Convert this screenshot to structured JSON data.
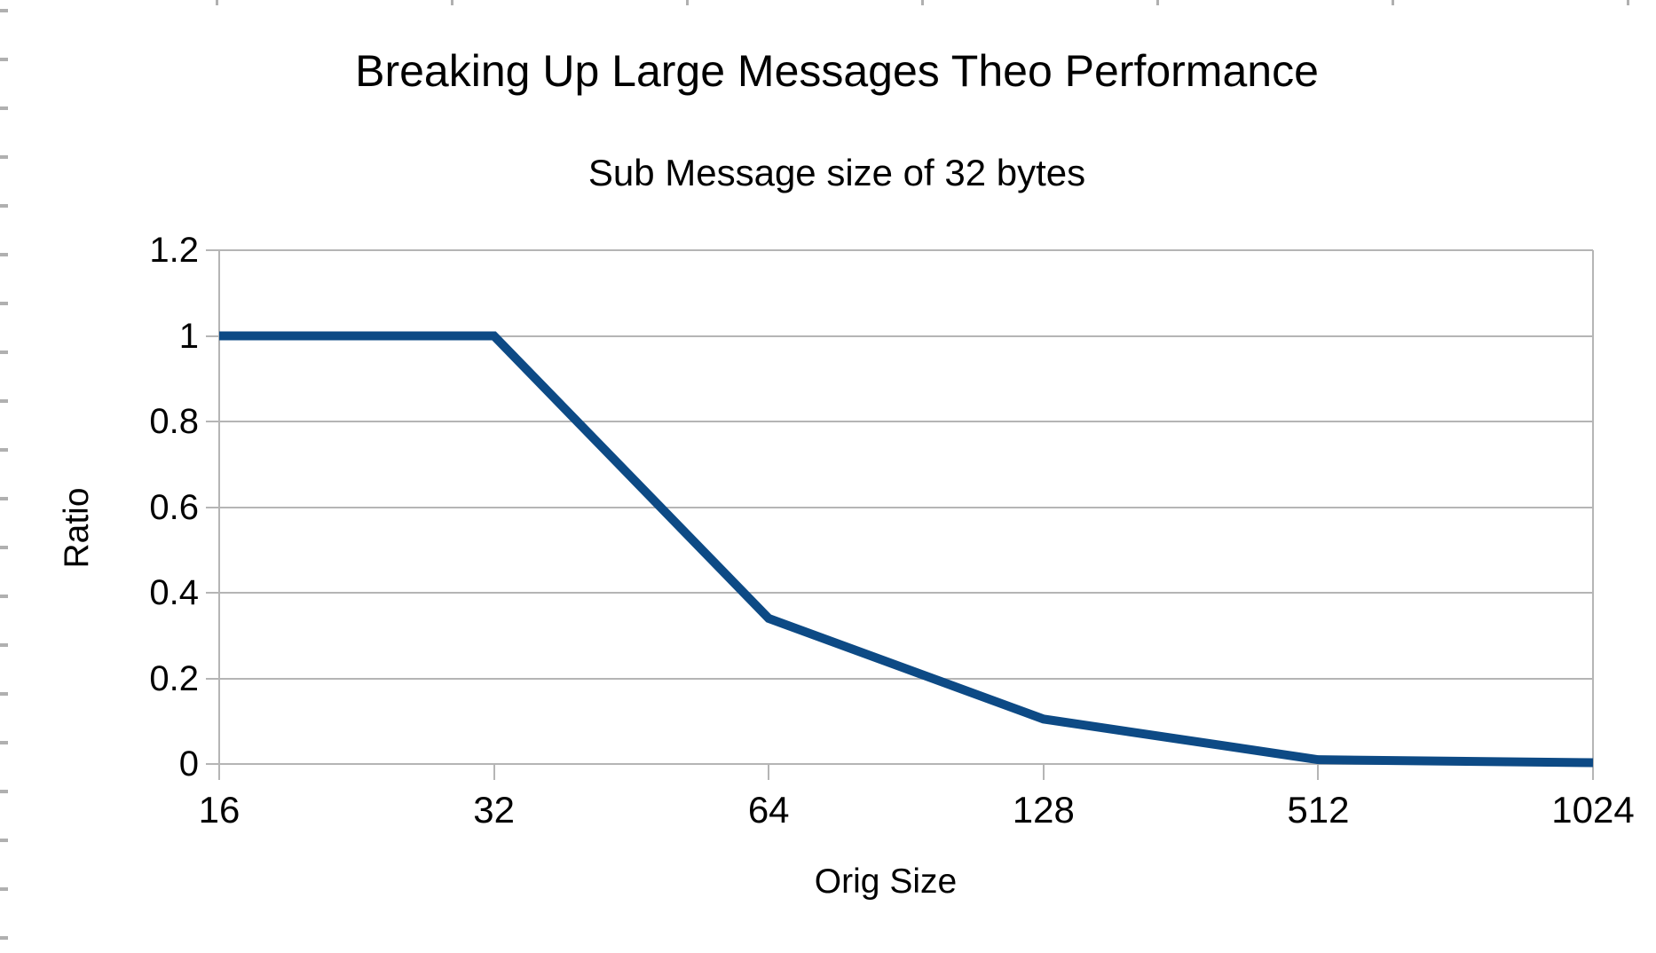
{
  "page": {
    "background_color": "#ffffff",
    "edge_mark_color": "#b0b0b0"
  },
  "chart_data": {
    "type": "line",
    "title": "Breaking Up Large Messages Theo Performance",
    "subtitle": "Sub Message size of 32 bytes",
    "xlabel": "Orig Size",
    "ylabel": "Ratio",
    "categories": [
      "16",
      "32",
      "64",
      "128",
      "512",
      "1024"
    ],
    "series": [
      {
        "name": "Ratio",
        "values": [
          1,
          1,
          0.34,
          0.105,
          0.01,
          0.003
        ],
        "color": "#0d4a85",
        "line_width": 10
      }
    ],
    "ylim": [
      0,
      1.2
    ],
    "yticks": [
      "0",
      "0.2",
      "0.4",
      "0.6",
      "0.8",
      "1",
      "1.2"
    ],
    "ytick_values": [
      0,
      0.2,
      0.4,
      0.6,
      0.8,
      1,
      1.2
    ],
    "grid": "horizontal",
    "grid_color": "#b5b5b5",
    "text_color": "#000000",
    "legend": "none"
  }
}
